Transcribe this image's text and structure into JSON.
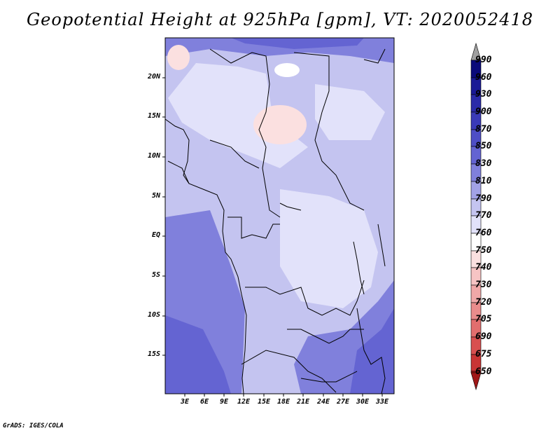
{
  "title": "Geopotential Height at 925hPa [gpm], VT: 2020052418",
  "credit": "GrADS: IGES/COLA",
  "map": {
    "lat_labels": [
      "20N",
      "15N",
      "10N",
      "5N",
      "EQ",
      "5S",
      "10S",
      "15S"
    ],
    "lon_labels": [
      "3E",
      "6E",
      "9E",
      "12E",
      "15E",
      "18E",
      "21E",
      "24E",
      "27E",
      "30E",
      "33E"
    ]
  },
  "colorbar": {
    "levels": [
      "990",
      "960",
      "930",
      "900",
      "870",
      "850",
      "830",
      "810",
      "790",
      "770",
      "760",
      "750",
      "740",
      "730",
      "720",
      "705",
      "690",
      "675",
      "650"
    ],
    "colors": {
      "over": "#a0a0a0",
      "c990": "#0a0a7a",
      "c960": "#1a1a96",
      "c930": "#2a2aa8",
      "c900": "#3a3ab8",
      "c870": "#4e4ec6",
      "c850": "#6464d2",
      "c830": "#8080dc",
      "c810": "#a2a2e6",
      "c790": "#c4c4f0",
      "c770": "#e2e2fa",
      "c760": "#ffffff",
      "c750": "#fbe0e0",
      "c740": "#f6c4c4",
      "c730": "#f0a8a8",
      "c720": "#ea8c8c",
      "c705": "#e26e6e",
      "c690": "#d85050",
      "c675": "#c83434",
      "c650": "#b01a1a",
      "under": "#a01818"
    }
  }
}
